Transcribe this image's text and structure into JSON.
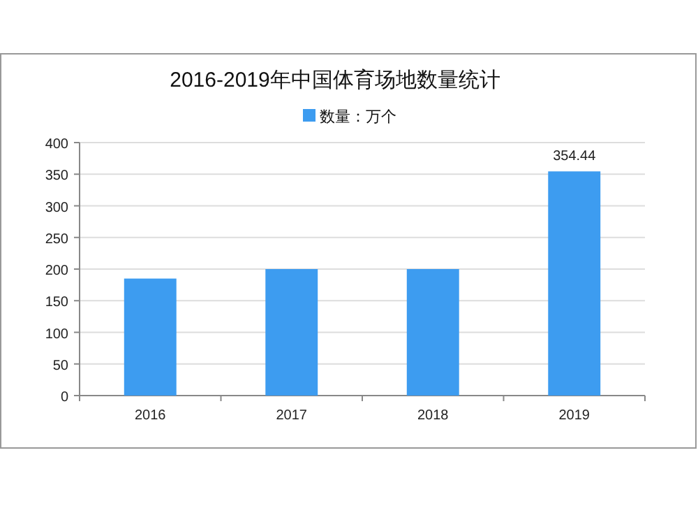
{
  "chart_data": {
    "type": "bar",
    "title": "2016-2019年中国体育场地数量统计",
    "categories": [
      "2016",
      "2017",
      "2018",
      "2019"
    ],
    "series": [
      {
        "name": "数量：万个",
        "color": "#3d9cf0",
        "values": [
          185,
          200,
          200,
          354.44
        ],
        "value_labels": [
          null,
          null,
          null,
          "354.44"
        ]
      }
    ],
    "ylim": [
      0,
      400
    ],
    "yticks": [
      0,
      50,
      100,
      150,
      200,
      250,
      300,
      350,
      400
    ],
    "grid": "y",
    "legend": "top"
  }
}
